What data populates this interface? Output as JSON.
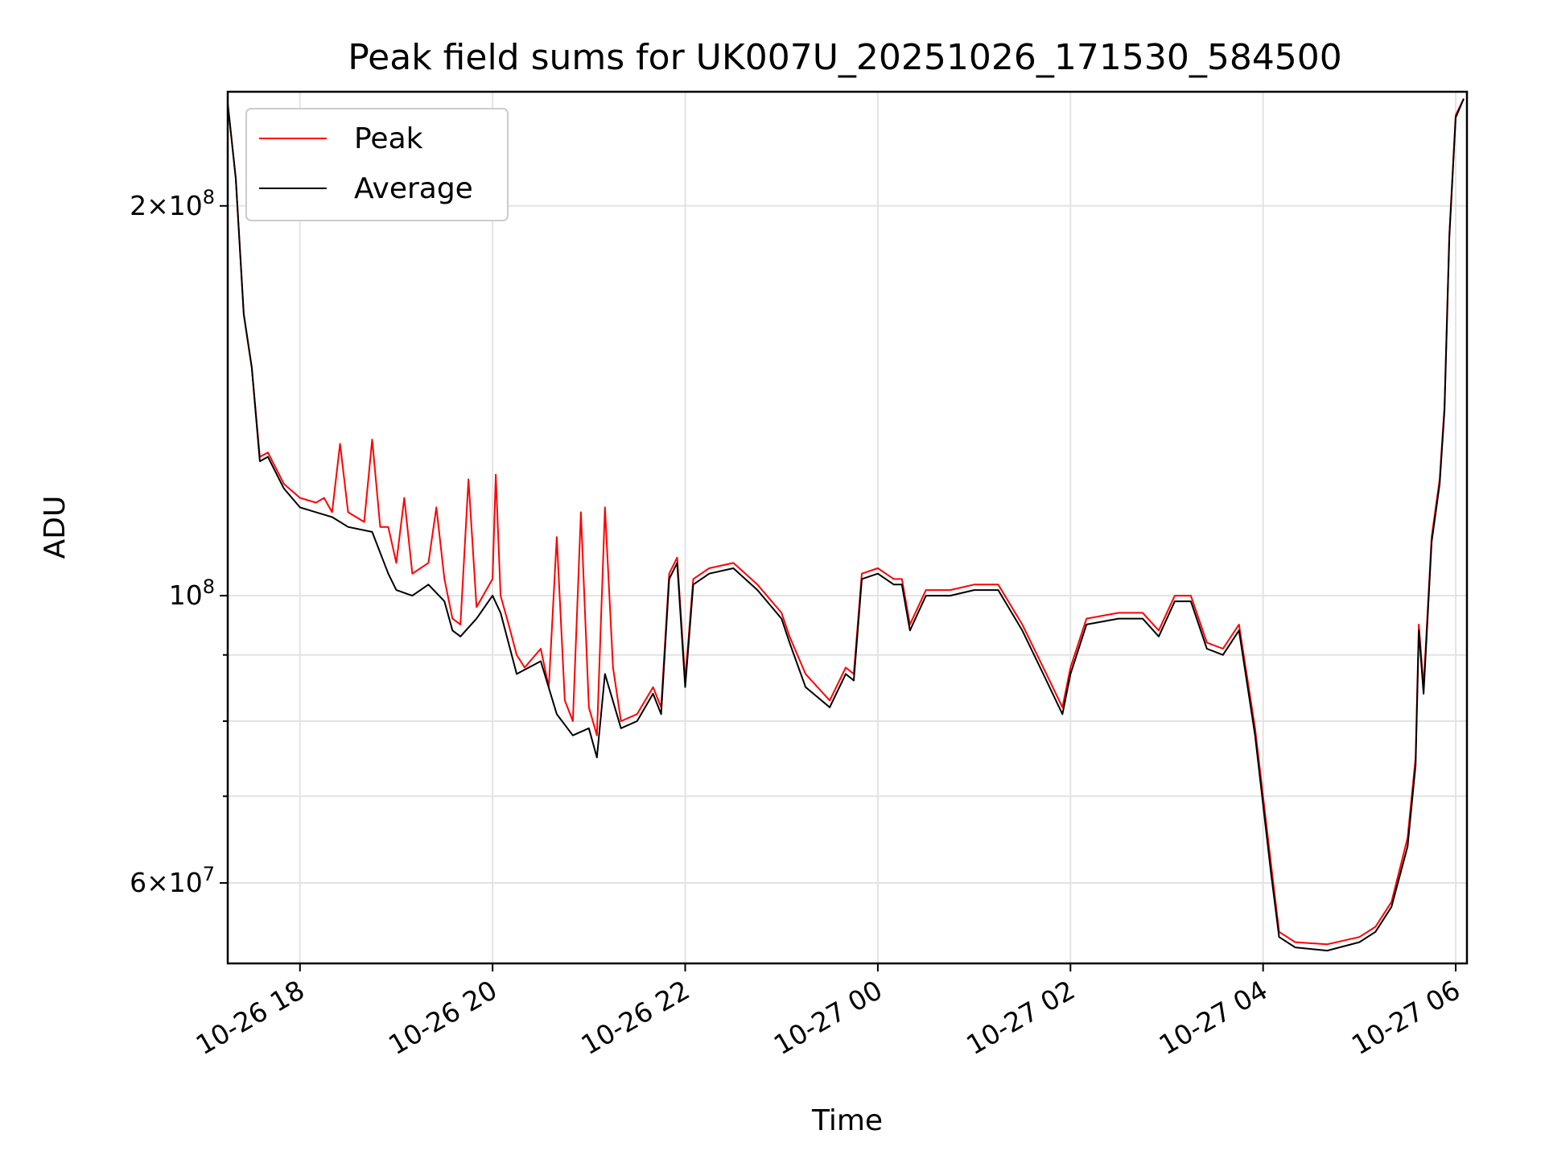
{
  "chart_data": {
    "type": "line",
    "title": "Peak field sums for UK007U_20251026_171530_584500",
    "xlabel": "Time",
    "ylabel": "ADU",
    "yscale": "log",
    "ylim": [
      52000000,
      245000000
    ],
    "xlim": [
      "2025-10-26 17:15",
      "2025-10-27 06:07"
    ],
    "grid": true,
    "legend_position": "upper left",
    "x_ticks": [
      {
        "t": "2025-10-26 18:00",
        "label": "10-26 18"
      },
      {
        "t": "2025-10-26 20:00",
        "label": "10-26 20"
      },
      {
        "t": "2025-10-26 22:00",
        "label": "10-26 22"
      },
      {
        "t": "2025-10-27 00:00",
        "label": "10-27 00"
      },
      {
        "t": "2025-10-27 02:00",
        "label": "10-27 02"
      },
      {
        "t": "2025-10-27 04:00",
        "label": "10-27 04"
      },
      {
        "t": "2025-10-27 06:00",
        "label": "10-27 06"
      }
    ],
    "y_major_ticks": [
      {
        "value": 60000000,
        "base": "6",
        "exp": "7"
      },
      {
        "value": 100000000,
        "base": "",
        "exp": "8"
      },
      {
        "value": 200000000,
        "base": "2",
        "exp": "8"
      }
    ],
    "y_minor_ticks": [
      70000000,
      80000000,
      90000000
    ],
    "series": [
      {
        "name": "Peak",
        "color": "#ff0000",
        "points": [
          [
            "2025-10-26 17:15",
            240000000
          ],
          [
            "2025-10-26 17:20",
            210000000
          ],
          [
            "2025-10-26 17:25",
            165000000
          ],
          [
            "2025-10-26 17:30",
            150000000
          ],
          [
            "2025-10-26 17:35",
            128000000
          ],
          [
            "2025-10-26 17:40",
            129000000
          ],
          [
            "2025-10-26 17:50",
            122000000
          ],
          [
            "2025-10-26 18:00",
            119000000
          ],
          [
            "2025-10-26 18:10",
            118000000
          ],
          [
            "2025-10-26 18:15",
            119000000
          ],
          [
            "2025-10-26 18:20",
            116000000
          ],
          [
            "2025-10-26 18:25",
            131000000
          ],
          [
            "2025-10-26 18:30",
            116000000
          ],
          [
            "2025-10-26 18:40",
            114000000
          ],
          [
            "2025-10-26 18:45",
            132000000
          ],
          [
            "2025-10-26 18:50",
            113000000
          ],
          [
            "2025-10-26 18:55",
            113000000
          ],
          [
            "2025-10-26 19:00",
            106000000
          ],
          [
            "2025-10-26 19:05",
            119000000
          ],
          [
            "2025-10-26 19:10",
            104000000
          ],
          [
            "2025-10-26 19:20",
            106000000
          ],
          [
            "2025-10-26 19:25",
            117000000
          ],
          [
            "2025-10-26 19:30",
            103000000
          ],
          [
            "2025-10-26 19:35",
            96000000
          ],
          [
            "2025-10-26 19:40",
            95000000
          ],
          [
            "2025-10-26 19:45",
            123000000
          ],
          [
            "2025-10-26 19:50",
            98000000
          ],
          [
            "2025-10-26 20:00",
            103000000
          ],
          [
            "2025-10-26 20:02",
            124000000
          ],
          [
            "2025-10-26 20:05",
            100000000
          ],
          [
            "2025-10-26 20:10",
            95000000
          ],
          [
            "2025-10-26 20:15",
            90000000
          ],
          [
            "2025-10-26 20:20",
            88000000
          ],
          [
            "2025-10-26 20:30",
            91000000
          ],
          [
            "2025-10-26 20:35",
            85000000
          ],
          [
            "2025-10-26 20:40",
            111000000
          ],
          [
            "2025-10-26 20:45",
            83000000
          ],
          [
            "2025-10-26 20:50",
            80000000
          ],
          [
            "2025-10-26 20:55",
            116000000
          ],
          [
            "2025-10-26 21:00",
            82000000
          ],
          [
            "2025-10-26 21:05",
            78000000
          ],
          [
            "2025-10-26 21:10",
            117000000
          ],
          [
            "2025-10-26 21:15",
            88000000
          ],
          [
            "2025-10-26 21:20",
            80000000
          ],
          [
            "2025-10-26 21:30",
            81000000
          ],
          [
            "2025-10-26 21:40",
            85000000
          ],
          [
            "2025-10-26 21:45",
            82000000
          ],
          [
            "2025-10-26 21:50",
            104000000
          ],
          [
            "2025-10-26 21:55",
            107000000
          ],
          [
            "2025-10-26 22:00",
            86000000
          ],
          [
            "2025-10-26 22:05",
            103000000
          ],
          [
            "2025-10-26 22:15",
            105000000
          ],
          [
            "2025-10-26 22:30",
            106000000
          ],
          [
            "2025-10-26 22:45",
            102000000
          ],
          [
            "2025-10-26 23:00",
            97000000
          ],
          [
            "2025-10-26 23:05",
            93000000
          ],
          [
            "2025-10-26 23:15",
            87000000
          ],
          [
            "2025-10-26 23:30",
            83000000
          ],
          [
            "2025-10-26 23:40",
            88000000
          ],
          [
            "2025-10-26 23:45",
            87000000
          ],
          [
            "2025-10-26 23:50",
            104000000
          ],
          [
            "2025-10-27 00:00",
            105000000
          ],
          [
            "2025-10-27 00:10",
            103000000
          ],
          [
            "2025-10-27 00:15",
            103000000
          ],
          [
            "2025-10-27 00:20",
            95000000
          ],
          [
            "2025-10-27 00:30",
            101000000
          ],
          [
            "2025-10-27 00:45",
            101000000
          ],
          [
            "2025-10-27 01:00",
            102000000
          ],
          [
            "2025-10-27 01:15",
            102000000
          ],
          [
            "2025-10-27 01:30",
            95000000
          ],
          [
            "2025-10-27 01:45",
            87000000
          ],
          [
            "2025-10-27 01:55",
            82000000
          ],
          [
            "2025-10-27 02:00",
            88000000
          ],
          [
            "2025-10-27 02:10",
            96000000
          ],
          [
            "2025-10-27 02:30",
            97000000
          ],
          [
            "2025-10-27 02:45",
            97000000
          ],
          [
            "2025-10-27 02:55",
            94000000
          ],
          [
            "2025-10-27 03:05",
            100000000
          ],
          [
            "2025-10-27 03:15",
            100000000
          ],
          [
            "2025-10-27 03:25",
            92000000
          ],
          [
            "2025-10-27 03:35",
            91000000
          ],
          [
            "2025-10-27 03:45",
            95000000
          ],
          [
            "2025-10-27 03:55",
            79000000
          ],
          [
            "2025-10-27 04:05",
            62000000
          ],
          [
            "2025-10-27 04:10",
            55000000
          ],
          [
            "2025-10-27 04:20",
            54000000
          ],
          [
            "2025-10-27 04:40",
            53800000
          ],
          [
            "2025-10-27 05:00",
            54500000
          ],
          [
            "2025-10-27 05:10",
            55500000
          ],
          [
            "2025-10-27 05:20",
            58000000
          ],
          [
            "2025-10-27 05:30",
            65000000
          ],
          [
            "2025-10-27 05:35",
            75000000
          ],
          [
            "2025-10-27 05:37",
            95000000
          ],
          [
            "2025-10-27 05:40",
            85000000
          ],
          [
            "2025-10-27 05:45",
            111000000
          ],
          [
            "2025-10-27 05:50",
            123000000
          ],
          [
            "2025-10-27 05:53",
            140000000
          ],
          [
            "2025-10-27 05:56",
            190000000
          ],
          [
            "2025-10-27 06:00",
            235000000
          ],
          [
            "2025-10-27 06:05",
            242000000
          ]
        ]
      },
      {
        "name": "Average",
        "color": "#000000",
        "points": [
          [
            "2025-10-26 17:15",
            240000000
          ],
          [
            "2025-10-26 17:20",
            210000000
          ],
          [
            "2025-10-26 17:25",
            165000000
          ],
          [
            "2025-10-26 17:30",
            150000000
          ],
          [
            "2025-10-26 17:35",
            127000000
          ],
          [
            "2025-10-26 17:40",
            128000000
          ],
          [
            "2025-10-26 17:50",
            121000000
          ],
          [
            "2025-10-26 18:00",
            117000000
          ],
          [
            "2025-10-26 18:10",
            116000000
          ],
          [
            "2025-10-26 18:20",
            115000000
          ],
          [
            "2025-10-26 18:30",
            113000000
          ],
          [
            "2025-10-26 18:45",
            112000000
          ],
          [
            "2025-10-26 18:55",
            104000000
          ],
          [
            "2025-10-26 19:00",
            101000000
          ],
          [
            "2025-10-26 19:10",
            100000000
          ],
          [
            "2025-10-26 19:20",
            102000000
          ],
          [
            "2025-10-26 19:30",
            99000000
          ],
          [
            "2025-10-26 19:35",
            94000000
          ],
          [
            "2025-10-26 19:40",
            93000000
          ],
          [
            "2025-10-26 19:50",
            96000000
          ],
          [
            "2025-10-26 20:00",
            100000000
          ],
          [
            "2025-10-26 20:05",
            97000000
          ],
          [
            "2025-10-26 20:15",
            87000000
          ],
          [
            "2025-10-26 20:30",
            89000000
          ],
          [
            "2025-10-26 20:40",
            81000000
          ],
          [
            "2025-10-26 20:50",
            78000000
          ],
          [
            "2025-10-26 21:00",
            79000000
          ],
          [
            "2025-10-26 21:05",
            75000000
          ],
          [
            "2025-10-26 21:10",
            87000000
          ],
          [
            "2025-10-26 21:20",
            79000000
          ],
          [
            "2025-10-26 21:30",
            80000000
          ],
          [
            "2025-10-26 21:40",
            84000000
          ],
          [
            "2025-10-26 21:45",
            81000000
          ],
          [
            "2025-10-26 21:50",
            103000000
          ],
          [
            "2025-10-26 21:55",
            106000000
          ],
          [
            "2025-10-26 22:00",
            85000000
          ],
          [
            "2025-10-26 22:05",
            102000000
          ],
          [
            "2025-10-26 22:15",
            104000000
          ],
          [
            "2025-10-26 22:30",
            105000000
          ],
          [
            "2025-10-26 22:45",
            101000000
          ],
          [
            "2025-10-26 23:00",
            96000000
          ],
          [
            "2025-10-26 23:05",
            92000000
          ],
          [
            "2025-10-26 23:15",
            85000000
          ],
          [
            "2025-10-26 23:30",
            82000000
          ],
          [
            "2025-10-26 23:40",
            87000000
          ],
          [
            "2025-10-26 23:45",
            86000000
          ],
          [
            "2025-10-26 23:50",
            103000000
          ],
          [
            "2025-10-27 00:00",
            104000000
          ],
          [
            "2025-10-27 00:10",
            102000000
          ],
          [
            "2025-10-27 00:15",
            102000000
          ],
          [
            "2025-10-27 00:20",
            94000000
          ],
          [
            "2025-10-27 00:30",
            100000000
          ],
          [
            "2025-10-27 00:45",
            100000000
          ],
          [
            "2025-10-27 01:00",
            101000000
          ],
          [
            "2025-10-27 01:15",
            101000000
          ],
          [
            "2025-10-27 01:30",
            94000000
          ],
          [
            "2025-10-27 01:45",
            86000000
          ],
          [
            "2025-10-27 01:55",
            81000000
          ],
          [
            "2025-10-27 02:00",
            87000000
          ],
          [
            "2025-10-27 02:10",
            95000000
          ],
          [
            "2025-10-27 02:30",
            96000000
          ],
          [
            "2025-10-27 02:45",
            96000000
          ],
          [
            "2025-10-27 02:55",
            93000000
          ],
          [
            "2025-10-27 03:05",
            99000000
          ],
          [
            "2025-10-27 03:15",
            99000000
          ],
          [
            "2025-10-27 03:25",
            91000000
          ],
          [
            "2025-10-27 03:35",
            90000000
          ],
          [
            "2025-10-27 03:45",
            94000000
          ],
          [
            "2025-10-27 03:55",
            78000000
          ],
          [
            "2025-10-27 04:05",
            61000000
          ],
          [
            "2025-10-27 04:10",
            54500000
          ],
          [
            "2025-10-27 04:20",
            53500000
          ],
          [
            "2025-10-27 04:40",
            53200000
          ],
          [
            "2025-10-27 05:00",
            54000000
          ],
          [
            "2025-10-27 05:10",
            55000000
          ],
          [
            "2025-10-27 05:20",
            57500000
          ],
          [
            "2025-10-27 05:30",
            64000000
          ],
          [
            "2025-10-27 05:35",
            74000000
          ],
          [
            "2025-10-27 05:37",
            94000000
          ],
          [
            "2025-10-27 05:40",
            84000000
          ],
          [
            "2025-10-27 05:45",
            110000000
          ],
          [
            "2025-10-27 05:50",
            122000000
          ],
          [
            "2025-10-27 05:53",
            139000000
          ],
          [
            "2025-10-27 05:56",
            189000000
          ],
          [
            "2025-10-27 06:00",
            234000000
          ],
          [
            "2025-10-27 06:05",
            242000000
          ]
        ]
      }
    ]
  }
}
